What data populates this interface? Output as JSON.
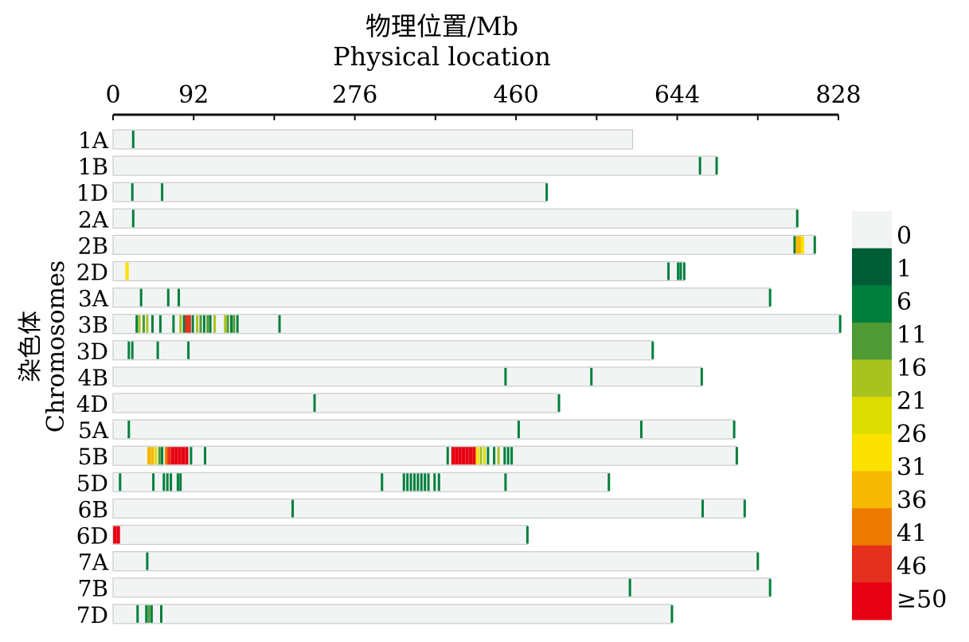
{
  "chart_data": {
    "type": "heatmap",
    "title": "物理位置/Mb",
    "subtitle": "Physical location",
    "ylabel_cn": "染色体",
    "ylabel_en": "Chromosomes",
    "xlim": [
      0,
      828
    ],
    "x_ticks": [
      0,
      92,
      276,
      460,
      644,
      828
    ],
    "legend": {
      "labels": [
        "0",
        "1",
        "6",
        "11",
        "16",
        "21",
        "26",
        "31",
        "36",
        "41",
        "46",
        "≥50"
      ],
      "colors": [
        "#f2f4f4",
        "#005e37",
        "#007f3c",
        "#4e9a34",
        "#a8c21e",
        "#dcdc00",
        "#fbe100",
        "#f6b800",
        "#ef7a00",
        "#e4301c",
        "#e60012"
      ]
    },
    "chromosomes": [
      {
        "name": "1A",
        "length": 593,
        "bins": [
          {
            "pos": 23,
            "class": 2
          }
        ]
      },
      {
        "name": "1B",
        "length": 689,
        "bins": [
          {
            "pos": 670,
            "class": 2
          },
          {
            "pos": 689,
            "class": 2
          }
        ]
      },
      {
        "name": "1D",
        "length": 495,
        "bins": [
          {
            "pos": 22,
            "class": 2
          },
          {
            "pos": 56,
            "class": 2
          },
          {
            "pos": 495,
            "class": 2
          }
        ]
      },
      {
        "name": "2A",
        "length": 781,
        "bins": [
          {
            "pos": 23,
            "class": 2
          },
          {
            "pos": 781,
            "class": 2
          }
        ]
      },
      {
        "name": "2B",
        "length": 801,
        "bins": [
          {
            "pos": 778,
            "class": 2
          },
          {
            "pos": 781,
            "class": 7
          },
          {
            "pos": 784,
            "class": 7
          },
          {
            "pos": 787,
            "class": 6
          },
          {
            "pos": 801,
            "class": 2
          }
        ]
      },
      {
        "name": "2D",
        "length": 652,
        "bins": [
          {
            "pos": 16,
            "class": 6
          },
          {
            "pos": 634,
            "class": 2
          },
          {
            "pos": 645,
            "class": 2
          },
          {
            "pos": 648,
            "class": 2
          },
          {
            "pos": 652,
            "class": 2
          }
        ]
      },
      {
        "name": "3A",
        "length": 750,
        "bins": [
          {
            "pos": 32,
            "class": 2
          },
          {
            "pos": 63,
            "class": 2
          },
          {
            "pos": 75,
            "class": 2
          },
          {
            "pos": 750,
            "class": 2
          }
        ]
      },
      {
        "name": "3B",
        "length": 830,
        "bins": [
          {
            "pos": 27,
            "class": 2
          },
          {
            "pos": 30,
            "class": 4
          },
          {
            "pos": 35,
            "class": 3
          },
          {
            "pos": 39,
            "class": 4
          },
          {
            "pos": 45,
            "class": 2
          },
          {
            "pos": 54,
            "class": 2
          },
          {
            "pos": 69,
            "class": 2
          },
          {
            "pos": 77,
            "class": 4
          },
          {
            "pos": 81,
            "class": 2
          },
          {
            "pos": 84,
            "class": 9
          },
          {
            "pos": 87,
            "class": 9
          },
          {
            "pos": 91,
            "class": 2
          },
          {
            "pos": 96,
            "class": 4
          },
          {
            "pos": 100,
            "class": 3
          },
          {
            "pos": 104,
            "class": 2
          },
          {
            "pos": 108,
            "class": 3
          },
          {
            "pos": 111,
            "class": 2
          },
          {
            "pos": 116,
            "class": 4
          },
          {
            "pos": 128,
            "class": 4
          },
          {
            "pos": 131,
            "class": 3
          },
          {
            "pos": 135,
            "class": 2
          },
          {
            "pos": 138,
            "class": 3
          },
          {
            "pos": 142,
            "class": 2
          },
          {
            "pos": 190,
            "class": 2
          },
          {
            "pos": 830,
            "class": 2
          }
        ]
      },
      {
        "name": "3D",
        "length": 616,
        "bins": [
          {
            "pos": 18,
            "class": 2
          },
          {
            "pos": 22,
            "class": 2
          },
          {
            "pos": 51,
            "class": 2
          },
          {
            "pos": 86,
            "class": 2
          },
          {
            "pos": 616,
            "class": 2
          }
        ]
      },
      {
        "name": "4B",
        "length": 672,
        "bins": [
          {
            "pos": 448,
            "class": 2
          },
          {
            "pos": 546,
            "class": 2
          },
          {
            "pos": 672,
            "class": 2
          }
        ]
      },
      {
        "name": "4D",
        "length": 509,
        "bins": [
          {
            "pos": 230,
            "class": 2
          },
          {
            "pos": 509,
            "class": 2
          }
        ]
      },
      {
        "name": "5A",
        "length": 709,
        "bins": [
          {
            "pos": 18,
            "class": 2
          },
          {
            "pos": 463,
            "class": 2
          },
          {
            "pos": 603,
            "class": 2
          },
          {
            "pos": 709,
            "class": 2
          }
        ]
      },
      {
        "name": "5B",
        "length": 712,
        "bins": [
          {
            "pos": 41,
            "class": 7
          },
          {
            "pos": 45,
            "class": 7
          },
          {
            "pos": 49,
            "class": 5
          },
          {
            "pos": 53,
            "class": 3
          },
          {
            "pos": 56,
            "class": 2
          },
          {
            "pos": 61,
            "class": 8
          },
          {
            "pos": 64,
            "class": 9
          },
          {
            "pos": 68,
            "class": 10
          },
          {
            "pos": 72,
            "class": 10
          },
          {
            "pos": 76,
            "class": 10
          },
          {
            "pos": 80,
            "class": 10
          },
          {
            "pos": 84,
            "class": 10
          },
          {
            "pos": 89,
            "class": 2
          },
          {
            "pos": 105,
            "class": 2
          },
          {
            "pos": 382,
            "class": 2
          },
          {
            "pos": 388,
            "class": 10
          },
          {
            "pos": 392,
            "class": 10
          },
          {
            "pos": 396,
            "class": 10
          },
          {
            "pos": 400,
            "class": 10
          },
          {
            "pos": 404,
            "class": 10
          },
          {
            "pos": 408,
            "class": 10
          },
          {
            "pos": 412,
            "class": 10
          },
          {
            "pos": 416,
            "class": 6
          },
          {
            "pos": 420,
            "class": 4
          },
          {
            "pos": 424,
            "class": 5
          },
          {
            "pos": 428,
            "class": 2
          },
          {
            "pos": 435,
            "class": 2
          },
          {
            "pos": 440,
            "class": 4
          },
          {
            "pos": 447,
            "class": 2
          },
          {
            "pos": 451,
            "class": 2
          },
          {
            "pos": 455,
            "class": 2
          },
          {
            "pos": 712,
            "class": 2
          }
        ]
      },
      {
        "name": "5D",
        "length": 566,
        "bins": [
          {
            "pos": 8,
            "class": 2
          },
          {
            "pos": 46,
            "class": 2
          },
          {
            "pos": 58,
            "class": 2
          },
          {
            "pos": 62,
            "class": 2
          },
          {
            "pos": 66,
            "class": 2
          },
          {
            "pos": 74,
            "class": 2
          },
          {
            "pos": 77,
            "class": 2
          },
          {
            "pos": 307,
            "class": 2
          },
          {
            "pos": 332,
            "class": 2
          },
          {
            "pos": 336,
            "class": 2
          },
          {
            "pos": 340,
            "class": 2
          },
          {
            "pos": 344,
            "class": 2
          },
          {
            "pos": 348,
            "class": 2
          },
          {
            "pos": 352,
            "class": 2
          },
          {
            "pos": 356,
            "class": 2
          },
          {
            "pos": 360,
            "class": 2
          },
          {
            "pos": 367,
            "class": 2
          },
          {
            "pos": 372,
            "class": 2
          },
          {
            "pos": 448,
            "class": 2
          },
          {
            "pos": 566,
            "class": 2
          }
        ]
      },
      {
        "name": "6B",
        "length": 721,
        "bins": [
          {
            "pos": 205,
            "class": 2
          },
          {
            "pos": 673,
            "class": 2
          },
          {
            "pos": 721,
            "class": 2
          }
        ]
      },
      {
        "name": "6D",
        "length": 473,
        "bins": [
          {
            "pos": 2,
            "class": 10
          },
          {
            "pos": 6,
            "class": 10
          },
          {
            "pos": 473,
            "class": 2
          }
        ]
      },
      {
        "name": "7A",
        "length": 736,
        "bins": [
          {
            "pos": 39,
            "class": 2
          },
          {
            "pos": 736,
            "class": 2
          }
        ]
      },
      {
        "name": "7B",
        "length": 750,
        "bins": [
          {
            "pos": 590,
            "class": 2
          },
          {
            "pos": 750,
            "class": 2
          }
        ]
      },
      {
        "name": "7D",
        "length": 638,
        "bins": [
          {
            "pos": 28,
            "class": 2
          },
          {
            "pos": 38,
            "class": 2
          },
          {
            "pos": 41,
            "class": 3
          },
          {
            "pos": 44,
            "class": 2
          },
          {
            "pos": 55,
            "class": 2
          },
          {
            "pos": 638,
            "class": 2
          }
        ]
      }
    ]
  }
}
